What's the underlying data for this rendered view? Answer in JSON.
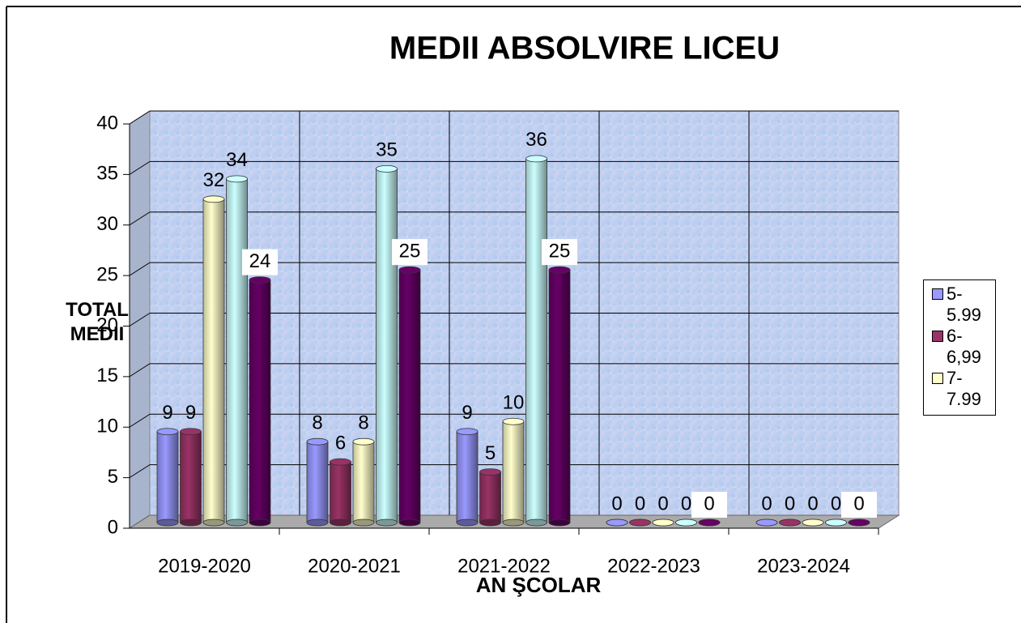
{
  "chart_data": {
    "type": "bar3d",
    "title": "MEDII ABSOLVIRE  LICEU",
    "x_label": "AN ŞCOLAR",
    "y_label": "TOTAL MEDII",
    "categories": [
      "2019-2020",
      "2020-2021",
      "2021-2022",
      "2022-2023",
      "2023-2024"
    ],
    "series": [
      {
        "name": "5-5.99",
        "color": "#9999ff",
        "values": [
          9,
          8,
          9,
          0,
          0
        ]
      },
      {
        "name": "6-6,99",
        "color": "#993366",
        "values": [
          9,
          6,
          5,
          0,
          0
        ]
      },
      {
        "name": "7-7.99",
        "color": "#ffffcc",
        "values": [
          32,
          8,
          10,
          0,
          0
        ]
      },
      {
        "color": "#ccffff",
        "values": [
          34,
          35,
          36,
          0,
          0
        ]
      },
      {
        "color": "#660066",
        "values": [
          24,
          25,
          25,
          0,
          0
        ]
      }
    ],
    "ylim": [
      0,
      40
    ],
    "yticks": [
      0,
      5,
      10,
      15,
      20,
      25,
      30,
      35,
      40
    ],
    "grid": true
  }
}
